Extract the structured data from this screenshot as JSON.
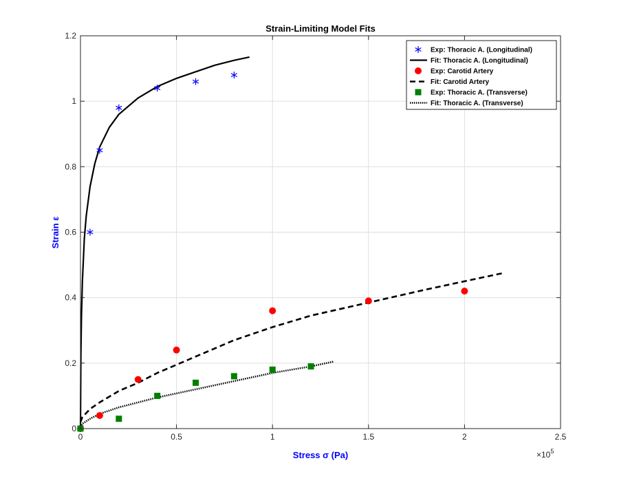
{
  "chart_data": {
    "type": "line",
    "title": "Strain-Limiting Model Fits",
    "xlabel": "Stress σ (Pa)",
    "ylabel": "Strain ε",
    "x_exponent": "×10^5",
    "x_exponent_base": "×10",
    "x_exponent_power": "5",
    "xlim": [
      0,
      250000
    ],
    "ylim": [
      0,
      1.2
    ],
    "x_ticks": [
      0,
      50000,
      100000,
      150000,
      200000,
      250000
    ],
    "x_tick_labels": [
      "0",
      "0.5",
      "1",
      "1.5",
      "2",
      "2.5"
    ],
    "y_ticks": [
      0,
      0.2,
      0.4,
      0.6,
      0.8,
      1.0,
      1.2
    ],
    "y_tick_labels": [
      "0",
      "0.2",
      "0.4",
      "0.6",
      "0.8",
      "1",
      "1.2"
    ],
    "grid": true,
    "legend_position": "top-right",
    "series": [
      {
        "name": "Exp: Thoracic A. (Longitudinal)",
        "kind": "scatter",
        "marker": "asterisk",
        "color": "#0000ff",
        "x": [
          0,
          5000,
          10000,
          20000,
          40000,
          60000,
          80000
        ],
        "y": [
          0,
          0.6,
          0.85,
          0.98,
          1.04,
          1.06,
          1.08
        ]
      },
      {
        "name": "Fit: Thoracic A. (Longitudinal)",
        "kind": "line",
        "style": "solid",
        "color": "#000000",
        "x": [
          0,
          200,
          500,
          1000,
          2000,
          3000,
          5000,
          7500,
          10000,
          15000,
          20000,
          30000,
          40000,
          50000,
          60000,
          70000,
          80000,
          88000
        ],
        "y": [
          0,
          0.22,
          0.34,
          0.45,
          0.58,
          0.65,
          0.74,
          0.81,
          0.86,
          0.92,
          0.96,
          1.01,
          1.045,
          1.07,
          1.09,
          1.11,
          1.125,
          1.135
        ]
      },
      {
        "name": "Exp: Carotid Artery",
        "kind": "scatter",
        "marker": "circle",
        "color": "#ff0000",
        "x": [
          0,
          10000,
          30000,
          50000,
          100000,
          150000,
          200000
        ],
        "y": [
          0,
          0.04,
          0.15,
          0.24,
          0.36,
          0.39,
          0.42
        ]
      },
      {
        "name": "Fit: Carotid Artery",
        "kind": "line",
        "style": "dashed",
        "color": "#000000",
        "x": [
          0,
          1000,
          5000,
          10000,
          20000,
          30000,
          40000,
          60000,
          80000,
          100000,
          120000,
          150000,
          180000,
          200000,
          220000
        ],
        "y": [
          0.02,
          0.035,
          0.06,
          0.08,
          0.115,
          0.14,
          0.17,
          0.22,
          0.27,
          0.31,
          0.345,
          0.385,
          0.425,
          0.45,
          0.475
        ]
      },
      {
        "name": "Exp: Thoracic A. (Transverse)",
        "kind": "scatter",
        "marker": "square",
        "color": "#008000",
        "x": [
          0,
          20000,
          40000,
          60000,
          80000,
          100000,
          120000
        ],
        "y": [
          0,
          0.03,
          0.1,
          0.14,
          0.16,
          0.18,
          0.19
        ]
      },
      {
        "name": "Fit: Thoracic A. (Transverse)",
        "kind": "line",
        "style": "dotted",
        "color": "#000000",
        "x": [
          0,
          1000,
          5000,
          10000,
          20000,
          30000,
          40000,
          60000,
          80000,
          100000,
          120000,
          132000
        ],
        "y": [
          0.005,
          0.015,
          0.03,
          0.045,
          0.065,
          0.08,
          0.095,
          0.12,
          0.145,
          0.17,
          0.19,
          0.205
        ]
      }
    ]
  }
}
